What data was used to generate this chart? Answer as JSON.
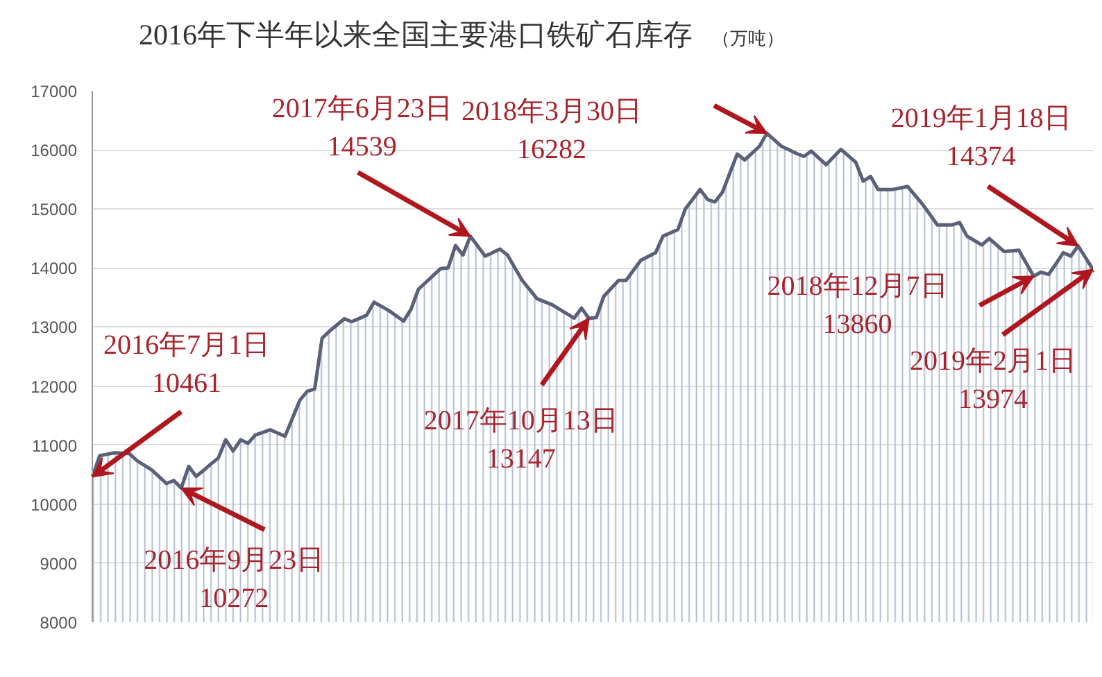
{
  "chart_data": {
    "type": "area",
    "title": "2016年下半年以来全国主要港口铁矿石库存",
    "subtitle": "（万吨）",
    "categories": [
      null,
      null,
      null,
      null,
      null,
      null,
      null,
      null,
      null,
      null,
      null,
      null,
      null,
      null,
      null,
      null,
      null,
      null,
      null,
      null,
      null,
      null,
      null,
      null,
      null,
      null,
      null,
      null,
      null,
      null,
      null,
      null,
      null,
      null,
      null,
      null,
      null,
      null,
      null,
      null,
      null,
      null,
      null,
      null,
      null,
      null,
      null,
      null,
      null,
      null,
      null,
      null,
      null,
      null,
      null,
      null,
      null,
      null,
      null,
      null,
      null,
      null,
      null,
      null,
      null,
      null,
      null,
      null,
      null,
      null,
      null,
      null,
      null,
      null,
      null,
      null,
      null,
      null,
      null,
      null,
      null,
      null,
      null,
      null,
      null,
      null,
      null,
      null,
      null,
      null,
      null,
      null,
      null,
      null,
      null,
      null,
      null,
      null,
      null,
      null,
      null,
      null,
      null,
      null,
      null,
      null,
      null,
      null,
      null,
      null,
      null,
      null,
      null,
      null,
      null,
      null,
      null,
      null,
      null,
      null,
      null,
      null,
      null,
      null,
      null,
      null,
      null,
      null,
      null,
      null,
      null,
      null,
      null,
      null,
      null,
      null
    ],
    "series": [
      {
        "color": "#5a6078",
        "values": [
          10461,
          10820,
          10845,
          10870,
          10863,
          10857,
          10740,
          10660,
          10580,
          10465,
          10350,
          10400,
          10272,
          10640,
          10470,
          10570,
          10680,
          10780,
          11090,
          10900,
          11090,
          11030,
          11170,
          11215,
          11260,
          11205,
          11150,
          11455,
          11760,
          11910,
          11950,
          12810,
          12930,
          13035,
          13140,
          13090,
          13145,
          13200,
          13420,
          13350,
          13280,
          13190,
          13100,
          13300,
          13640,
          13757,
          13873,
          13990,
          14000,
          14380,
          14220,
          14539,
          14370,
          14200,
          14260,
          14320,
          14220,
          14005,
          13790,
          13635,
          13480,
          13430,
          13380,
          13303,
          13227,
          13150,
          13320,
          13147,
          13160,
          13520,
          13655,
          13790,
          13790,
          13960,
          14130,
          14195,
          14260,
          14540,
          14595,
          14650,
          15000,
          15165,
          15330,
          15160,
          15120,
          15280,
          15605,
          15930,
          15830,
          15945,
          16060,
          16282,
          16171,
          16060,
          16000,
          15940,
          15890,
          15980,
          15865,
          15750,
          15880,
          16010,
          15900,
          15790,
          15470,
          15550,
          15330,
          15330,
          15330,
          15355,
          15380,
          15230,
          15080,
          14905,
          14730,
          14730,
          14730,
          14770,
          14540,
          14465,
          14390,
          14500,
          14390,
          14280,
          14290,
          14300,
          14080,
          13860,
          13930,
          13890,
          14070,
          14260,
          14200,
          14374,
          14174,
          13974
        ]
      }
    ],
    "ylim": [
      8000,
      17000
    ],
    "yticks": [
      8000,
      9000,
      10000,
      11000,
      12000,
      13000,
      14000,
      15000,
      16000,
      17000
    ],
    "grid": "y",
    "tick_labels": "y",
    "annotations": [
      "2016年7月1日\n10461",
      "2016年9月23日\n10272",
      "2017年6月23日\n14539",
      "2017年10月13日\n13147",
      "2018年3月30日\n16282",
      "2018年12月7日\n13860",
      "2019年1月18日\n14374",
      "2019年2月1日\n13974"
    ]
  }
}
